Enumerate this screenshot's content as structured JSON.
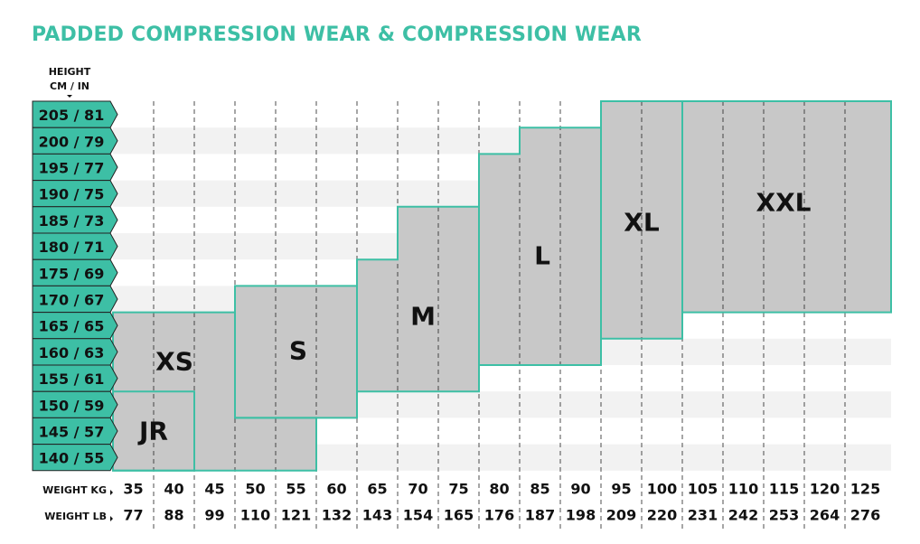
{
  "title": "PADDED COMPRESSION WEAR & COMPRESSION WEAR",
  "chart_data": {
    "type": "heatmap",
    "title": "PADDED COMPRESSION WEAR & COMPRESSION WEAR",
    "ylabel": [
      "HEIGHT",
      "CM / IN"
    ],
    "xlabel_kg": "WEIGHT KG",
    "xlabel_lb": "WEIGHT LB",
    "heights": [
      "205 / 81",
      "200 / 79",
      "195 / 77",
      "190 / 75",
      "185 / 73",
      "180 / 71",
      "175 / 69",
      "170 / 67",
      "165 / 65",
      "160 / 63",
      "155 / 61",
      "150 / 59",
      "145 / 57",
      "140 / 55"
    ],
    "heights_cm": [
      205,
      200,
      195,
      190,
      185,
      180,
      175,
      170,
      165,
      160,
      155,
      150,
      145,
      140
    ],
    "weights_kg": [
      35,
      40,
      45,
      50,
      55,
      60,
      65,
      70,
      75,
      80,
      85,
      90,
      95,
      100,
      105,
      110,
      115,
      120,
      125
    ],
    "weights_lb": [
      77,
      88,
      99,
      110,
      121,
      132,
      143,
      154,
      165,
      176,
      187,
      198,
      209,
      220,
      231,
      242,
      253,
      264,
      276
    ],
    "sizes": [
      {
        "name": "XS",
        "columns": [
          {
            "kg": 35,
            "cm": [
              140,
              165
            ]
          },
          {
            "kg": 40,
            "cm": [
              140,
              165
            ]
          },
          {
            "kg": 45,
            "cm": [
              140,
              165
            ]
          },
          {
            "kg": 50,
            "cm": [
              140,
              145
            ]
          },
          {
            "kg": 55,
            "cm": [
              140,
              145
            ]
          }
        ]
      },
      {
        "name": "JR",
        "columns": [
          {
            "kg": 35,
            "cm": [
              140,
              150
            ]
          },
          {
            "kg": 40,
            "cm": [
              140,
              150
            ]
          }
        ]
      },
      {
        "name": "S",
        "columns": [
          {
            "kg": 50,
            "cm": [
              150,
              170
            ]
          },
          {
            "kg": 55,
            "cm": [
              150,
              170
            ]
          },
          {
            "kg": 60,
            "cm": [
              150,
              170
            ]
          }
        ]
      },
      {
        "name": "M",
        "columns": [
          {
            "kg": 65,
            "cm": [
              155,
              175
            ]
          },
          {
            "kg": 70,
            "cm": [
              155,
              185
            ]
          },
          {
            "kg": 75,
            "cm": [
              155,
              185
            ]
          }
        ]
      },
      {
        "name": "L",
        "columns": [
          {
            "kg": 80,
            "cm": [
              160,
              195
            ]
          },
          {
            "kg": 85,
            "cm": [
              160,
              200
            ]
          },
          {
            "kg": 90,
            "cm": [
              160,
              200
            ]
          }
        ]
      },
      {
        "name": "XL",
        "columns": [
          {
            "kg": 95,
            "cm": [
              165,
              205
            ]
          },
          {
            "kg": 100,
            "cm": [
              165,
              205
            ]
          }
        ]
      },
      {
        "name": "XXL",
        "columns": [
          {
            "kg": 105,
            "cm": [
              170,
              205
            ]
          },
          {
            "kg": 110,
            "cm": [
              170,
              205
            ]
          },
          {
            "kg": 115,
            "cm": [
              170,
              205
            ]
          },
          {
            "kg": 120,
            "cm": [
              170,
              205
            ]
          },
          {
            "kg": 125,
            "cm": [
              170,
              205
            ]
          }
        ]
      }
    ],
    "grid": true
  },
  "colors": {
    "accent": "#3dbfa5",
    "size_fill": "#c8c8c8",
    "row_shade": "#f2f2f2"
  }
}
